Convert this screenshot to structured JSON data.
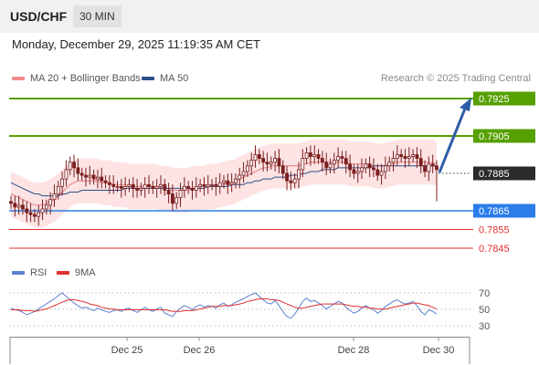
{
  "header": {
    "symbol": "USD/CHF",
    "timeframe": "30 MIN",
    "datetime": "Monday, December 29, 2025 11:19:35 AM CET"
  },
  "legend": {
    "ma20_label": "MA 20 + Bollinger Bands",
    "ma50_label": "MA 50",
    "copyright": "Research © 2025 Trading Central"
  },
  "rsi_legend": {
    "rsi_label": "RSI",
    "ma9_label": "9MA"
  },
  "colors": {
    "green_level": "#56a000",
    "blue_level": "#2b7de9",
    "red_level": "#e03030",
    "candle": "#7a1f1f",
    "ma20": "#e88080",
    "ma50": "#2a4f8a",
    "band_fill": "#fde0e0",
    "arrow": "#2e5da8",
    "rsi": "#5b7fd1",
    "rsi_ma": "#e03030"
  },
  "chart_data": [
    {
      "type": "candlestick",
      "title": "USD/CHF 30 MIN",
      "ylim": [
        0.784,
        0.793
      ],
      "x_tick_labels": [
        "Dec 25",
        "Dec 26",
        "Dec 28",
        "Dec 30"
      ],
      "current_price": 0.7885,
      "levels": [
        {
          "value": 0.7925,
          "label": "0.7925",
          "kind": "resistance"
        },
        {
          "value": 0.7905,
          "label": "0.7905",
          "kind": "resistance"
        },
        {
          "value": 0.7885,
          "label": "0.7885",
          "kind": "current"
        },
        {
          "value": 0.7865,
          "label": "0.7865",
          "kind": "pivot"
        },
        {
          "value": 0.7855,
          "label": "0.7855",
          "kind": "support"
        },
        {
          "value": 0.7845,
          "label": "0.7845",
          "kind": "support"
        }
      ],
      "closes": [
        0.7869,
        0.7867,
        0.7868,
        0.7866,
        0.7864,
        0.7863,
        0.7862,
        0.7864,
        0.7866,
        0.7868,
        0.7871,
        0.7874,
        0.7878,
        0.7882,
        0.7887,
        0.7891,
        0.7888,
        0.7885,
        0.7884,
        0.7883,
        0.7884,
        0.7882,
        0.7883,
        0.7881,
        0.788,
        0.7879,
        0.7878,
        0.7878,
        0.7877,
        0.7878,
        0.7879,
        0.7877,
        0.7876,
        0.7877,
        0.7879,
        0.7878,
        0.7877,
        0.7878,
        0.7879,
        0.7876,
        0.7874,
        0.7869,
        0.7872,
        0.7876,
        0.7878,
        0.7877,
        0.7876,
        0.7878,
        0.7879,
        0.7878,
        0.7879,
        0.7879,
        0.7878,
        0.788,
        0.7881,
        0.7879,
        0.788,
        0.7882,
        0.7884,
        0.7886,
        0.7889,
        0.7892,
        0.7895,
        0.7893,
        0.7891,
        0.789,
        0.7891,
        0.7893,
        0.7889,
        0.7885,
        0.7881,
        0.788,
        0.7882,
        0.7887,
        0.7893,
        0.7896,
        0.7894,
        0.7895,
        0.7893,
        0.7891,
        0.7888,
        0.789,
        0.7892,
        0.7894,
        0.7893,
        0.789,
        0.7887,
        0.7885,
        0.7886,
        0.7888,
        0.789,
        0.7888,
        0.7887,
        0.7884,
        0.7886,
        0.7889,
        0.7891,
        0.7893,
        0.7895,
        0.7894,
        0.7893,
        0.7894,
        0.7895,
        0.7893,
        0.7889,
        0.7886,
        0.789,
        0.7889,
        0.7887
      ],
      "ma20": [
        0.7874,
        0.7873,
        0.7872,
        0.7871,
        0.787,
        0.7869,
        0.7868,
        0.7868,
        0.7868,
        0.7869,
        0.787,
        0.7871,
        0.7873,
        0.7875,
        0.7877,
        0.7879,
        0.788,
        0.7881,
        0.7881,
        0.7881,
        0.7881,
        0.7881,
        0.7881,
        0.788,
        0.788,
        0.788,
        0.7879,
        0.7879,
        0.7879,
        0.7879,
        0.7878,
        0.7878,
        0.7878,
        0.7878,
        0.7878,
        0.7878,
        0.7878,
        0.7878,
        0.7877,
        0.7877,
        0.7877,
        0.7876,
        0.7876,
        0.7876,
        0.7876,
        0.7876,
        0.7877,
        0.7877,
        0.7877,
        0.7877,
        0.7878,
        0.7878,
        0.7878,
        0.7879,
        0.7879,
        0.788,
        0.788,
        0.7881,
        0.7882,
        0.7883,
        0.7884,
        0.7885,
        0.7886,
        0.7887,
        0.7888,
        0.7888,
        0.7889,
        0.7889,
        0.7889,
        0.7889,
        0.7889,
        0.7889,
        0.7889,
        0.7889,
        0.789,
        0.789,
        0.7891,
        0.7891,
        0.7891,
        0.7891,
        0.7891,
        0.7891,
        0.7891,
        0.7891,
        0.7891,
        0.7891,
        0.789,
        0.789,
        0.789,
        0.789,
        0.789,
        0.789,
        0.7889,
        0.7889,
        0.7889,
        0.7889,
        0.789,
        0.789,
        0.7891,
        0.7891,
        0.7891,
        0.7891,
        0.7891,
        0.7891,
        0.7891,
        0.7891,
        0.7891,
        0.7891,
        0.789
      ],
      "ma50": [
        0.788,
        0.7879,
        0.7878,
        0.7877,
        0.7876,
        0.7875,
        0.7874,
        0.7874,
        0.7873,
        0.7873,
        0.7873,
        0.7873,
        0.7873,
        0.7874,
        0.7874,
        0.7875,
        0.7875,
        0.7875,
        0.7876,
        0.7876,
        0.7876,
        0.7876,
        0.7876,
        0.7876,
        0.7876,
        0.7876,
        0.7876,
        0.7876,
        0.7876,
        0.7877,
        0.7877,
        0.7877,
        0.7877,
        0.7877,
        0.7877,
        0.7877,
        0.7877,
        0.7877,
        0.7877,
        0.7877,
        0.7877,
        0.7877,
        0.7877,
        0.7877,
        0.7877,
        0.7877,
        0.7877,
        0.7877,
        0.7877,
        0.7877,
        0.7878,
        0.7878,
        0.7878,
        0.7878,
        0.7878,
        0.7878,
        0.7879,
        0.7879,
        0.7879,
        0.7879,
        0.788,
        0.788,
        0.7881,
        0.7881,
        0.7882,
        0.7882,
        0.7882,
        0.7883,
        0.7883,
        0.7883,
        0.7883,
        0.7884,
        0.7884,
        0.7884,
        0.7885,
        0.7885,
        0.7886,
        0.7886,
        0.7886,
        0.7887,
        0.7887,
        0.7887,
        0.7887,
        0.7888,
        0.7888,
        0.7888,
        0.7888,
        0.7888,
        0.7888,
        0.7888,
        0.7888,
        0.7888,
        0.7889,
        0.7889,
        0.7889,
        0.7889,
        0.7889,
        0.7889,
        0.7889,
        0.7889,
        0.7889,
        0.7889,
        0.7889,
        0.7889,
        0.7889,
        0.7889,
        0.7889,
        0.7889,
        0.7889
      ]
    },
    {
      "type": "line",
      "title": "RSI",
      "ylim": [
        20,
        80
      ],
      "y_ticks": [
        70,
        50,
        30
      ],
      "x_tick_labels": [
        "Dec 25",
        "Dec 26",
        "Dec 28",
        "Dec 30"
      ],
      "series": [
        {
          "name": "RSI",
          "values": [
            52,
            50,
            49,
            47,
            44,
            46,
            48,
            51,
            54,
            57,
            60,
            63,
            67,
            70,
            66,
            62,
            58,
            55,
            52,
            53,
            51,
            49,
            52,
            50,
            48,
            47,
            49,
            50,
            48,
            51,
            52,
            49,
            47,
            50,
            53,
            50,
            48,
            51,
            53,
            46,
            44,
            42,
            48,
            52,
            55,
            53,
            50,
            54,
            56,
            53,
            55,
            54,
            52,
            56,
            58,
            54,
            56,
            59,
            61,
            63,
            66,
            68,
            70,
            66,
            62,
            58,
            57,
            61,
            55,
            48,
            42,
            40,
            45,
            52,
            60,
            64,
            60,
            61,
            58,
            55,
            51,
            54,
            57,
            60,
            58,
            53,
            49,
            46,
            48,
            52,
            55,
            52,
            50,
            46,
            49,
            54,
            57,
            60,
            62,
            59,
            57,
            58,
            60,
            55,
            48,
            44,
            50,
            48,
            45
          ]
        },
        {
          "name": "9MA",
          "values": [
            50,
            50,
            50,
            49,
            49,
            49,
            48,
            49,
            50,
            51,
            53,
            55,
            57,
            59,
            61,
            62,
            62,
            61,
            60,
            59,
            57,
            56,
            55,
            53,
            52,
            51,
            51,
            50,
            50,
            50,
            50,
            50,
            50,
            50,
            50,
            50,
            50,
            50,
            50,
            50,
            49,
            48,
            48,
            48,
            49,
            49,
            49,
            50,
            51,
            52,
            53,
            54,
            54,
            54,
            55,
            55,
            55,
            56,
            57,
            58,
            60,
            61,
            62,
            63,
            63,
            63,
            62,
            62,
            61,
            59,
            57,
            55,
            53,
            52,
            52,
            53,
            54,
            55,
            56,
            57,
            57,
            57,
            57,
            57,
            57,
            56,
            55,
            54,
            54,
            53,
            53,
            52,
            52,
            51,
            51,
            51,
            52,
            53,
            54,
            55,
            56,
            57,
            58,
            58,
            57,
            56,
            55,
            53,
            51
          ]
        }
      ]
    }
  ]
}
